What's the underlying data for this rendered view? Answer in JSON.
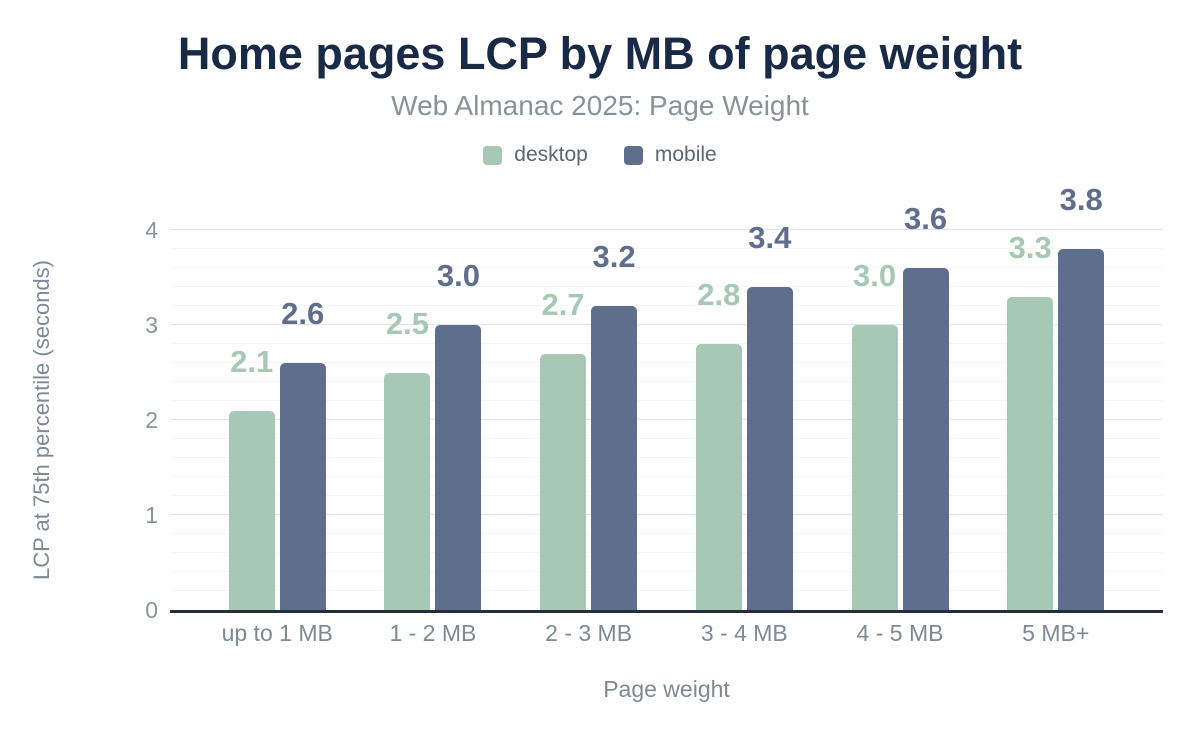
{
  "header": {
    "title": "Home pages LCP by MB of page weight",
    "subtitle": "Web Almanac 2025: Page Weight"
  },
  "chart_data": {
    "type": "bar",
    "title": "Home pages LCP by MB of page weight",
    "subtitle": "Web Almanac 2025: Page Weight",
    "xlabel": "Page weight",
    "ylabel": "LCP at 75th percentile (seconds)",
    "categories": [
      "up to 1 MB",
      "1 - 2 MB",
      "2 - 3 MB",
      "3 - 4 MB",
      "4 - 5 MB",
      "5 MB+"
    ],
    "series": [
      {
        "name": "desktop",
        "color": "#a7c8b5",
        "values": [
          2.1,
          2.5,
          2.7,
          2.8,
          3.0,
          3.3
        ]
      },
      {
        "name": "mobile",
        "color": "#5f6e8c",
        "values": [
          2.6,
          3.0,
          3.2,
          3.4,
          3.6,
          3.8
        ]
      }
    ],
    "ylim": [
      0,
      4
    ],
    "yticks": [
      0,
      1,
      2,
      3,
      4
    ],
    "grid": {
      "show": true,
      "major_step": 1,
      "minor_step": 0.2
    },
    "legend_position": "top",
    "value_labels": true,
    "value_label_decimals": 1
  },
  "colors": {
    "background": "#ffffff",
    "title": "#192a47",
    "subtitle": "#8a9198",
    "legend_text": "#5c6771",
    "axis_line": "#262e3e",
    "tick_labels": "#8c939b",
    "axis_titles": "#7e8994",
    "gridline_major": "#e4e4e4",
    "gridline_minor": "#f5f5f5",
    "desktop": "#a7c8b5",
    "mobile": "#5f6e8c"
  }
}
